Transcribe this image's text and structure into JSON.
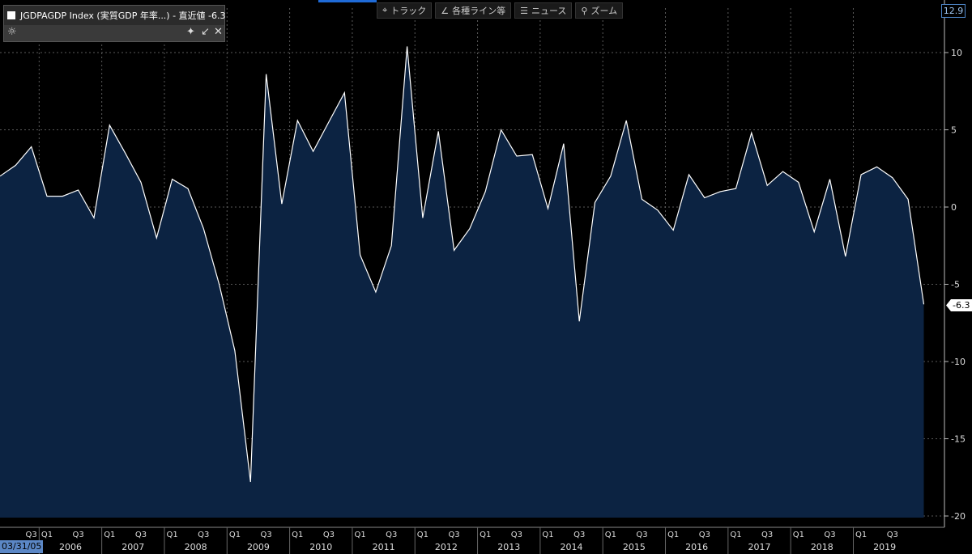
{
  "legend": {
    "text": "JGDPAGDP Index (実質GDP 年率...) - 直近値  -6.3",
    "gear": "☼",
    "pin": "✦",
    "shrink": "↙",
    "close": "✕"
  },
  "toolbar": {
    "track": "トラック",
    "lines": "各種ライン等",
    "news": "ニュース",
    "zoom": "ズーム",
    "track_icon": "⌖",
    "lines_icon": "∠",
    "news_icon": "☰",
    "zoom_icon": "⚲"
  },
  "badges": {
    "top_value": "12.9",
    "last_value": "-6.3",
    "start_date": "03/31/05"
  },
  "colors": {
    "fill": "#0c2342",
    "line": "#ffffff",
    "grid": "#5a5a5a",
    "badge_blue": "#5b87c6"
  },
  "chart_data": {
    "type": "area",
    "series": [
      {
        "values": [
          2.0,
          2.7,
          3.9,
          0.7,
          0.7,
          1.1,
          -0.7,
          5.3,
          3.5,
          1.6,
          -2.0,
          1.8,
          1.2,
          -1.4,
          -5.0,
          -9.3,
          -17.8,
          8.6,
          0.2,
          5.6,
          3.6,
          5.5,
          7.4,
          -3.1,
          -5.5,
          -2.5,
          10.4,
          -0.7,
          4.9,
          -2.8,
          -1.4,
          1.0,
          5.0,
          3.3,
          3.4,
          -0.1,
          4.1,
          -7.4,
          0.3,
          2.0,
          5.6,
          0.5,
          -0.2,
          -1.5,
          2.1,
          0.6,
          1.0,
          1.2,
          4.8,
          1.4,
          2.3,
          1.6,
          -1.6,
          1.8,
          -3.2,
          2.1,
          2.6,
          1.9,
          0.5,
          -6.3
        ]
      }
    ],
    "ylim": [
      -20,
      12.9
    ],
    "yticks": [
      10,
      5,
      0,
      -5,
      -10,
      -15,
      -20
    ],
    "ytick_labels": [
      "10",
      "5",
      "0",
      "-5",
      "-10",
      "-15",
      "-20"
    ],
    "x_quarter_labels": [
      "Q3",
      "Q1",
      "Q3",
      "Q1",
      "Q3",
      "Q1",
      "Q3",
      "Q1",
      "Q3",
      "Q1",
      "Q3",
      "Q1",
      "Q3",
      "Q1",
      "Q3",
      "Q1",
      "Q3",
      "Q1",
      "Q3",
      "Q1",
      "Q3",
      "Q1",
      "Q3",
      "Q1",
      "Q3",
      "Q1",
      "Q3",
      "Q1",
      "Q3"
    ],
    "x_year_labels": [
      "2006",
      "2007",
      "2008",
      "2009",
      "2010",
      "2011",
      "2012",
      "2013",
      "2014",
      "2015",
      "2016",
      "2017",
      "2018",
      "2019"
    ],
    "grid": true
  }
}
